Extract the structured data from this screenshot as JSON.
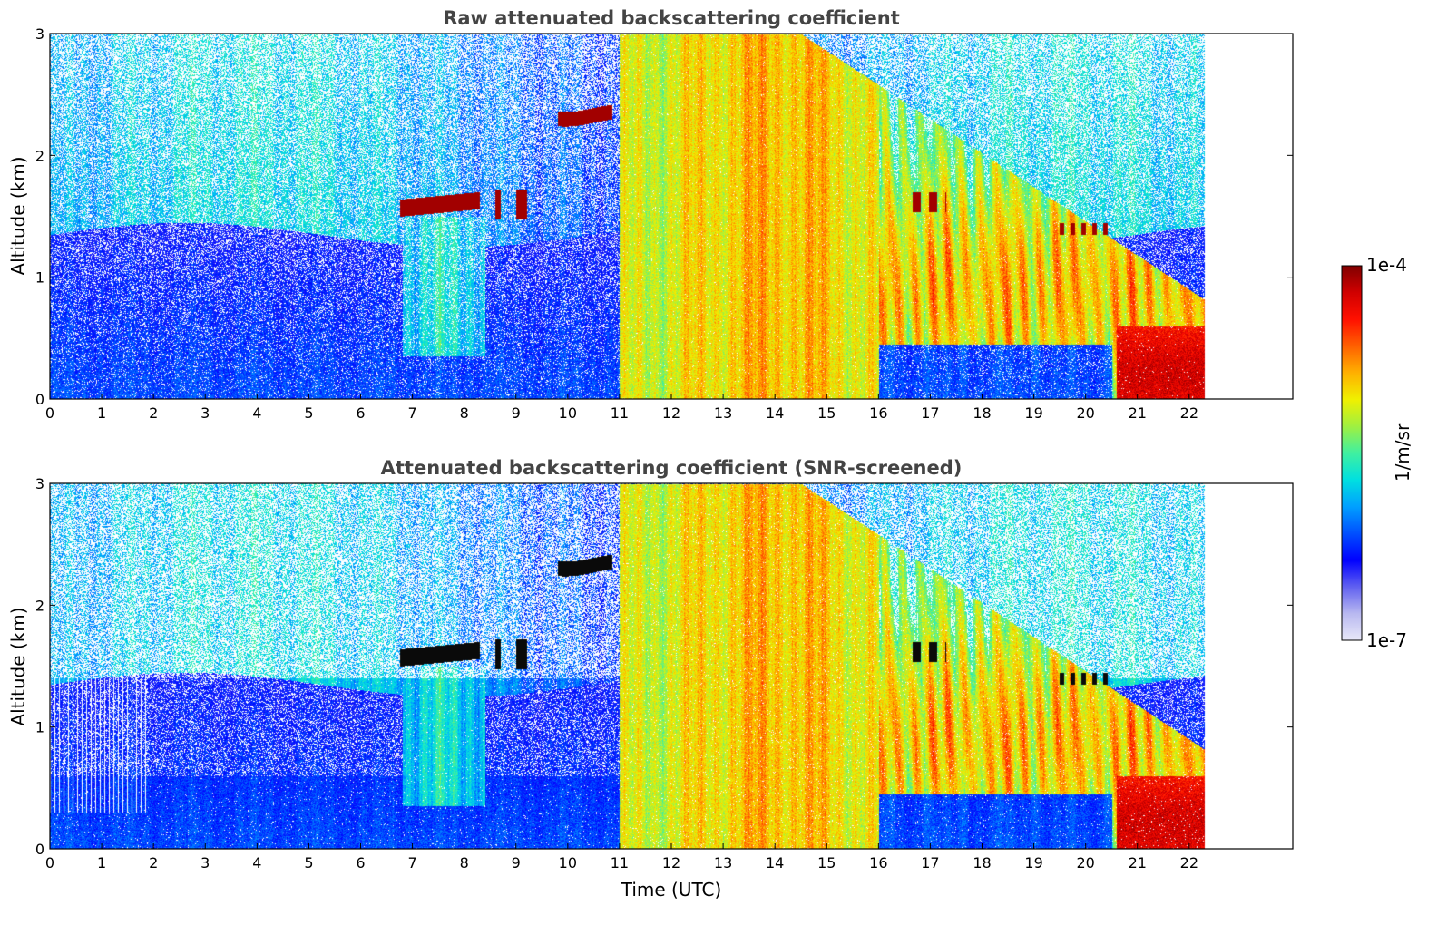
{
  "chart_data": [
    {
      "type": "heatmap",
      "title": "Raw attenuated backscattering coefficient",
      "xlabel": "",
      "ylabel": "Altitude (km)",
      "xlim": [
        0,
        24
      ],
      "ylim": [
        0,
        3
      ],
      "x_ticks": [
        "0",
        "1",
        "2",
        "3",
        "4",
        "5",
        "6",
        "7",
        "8",
        "9",
        "10",
        "11",
        "12",
        "13",
        "14",
        "15",
        "16",
        "17",
        "18",
        "19",
        "20",
        "21",
        "22"
      ],
      "y_ticks": [
        "0",
        "1",
        "2",
        "3"
      ],
      "data_time_end": 22.3,
      "screened": false
    },
    {
      "type": "heatmap",
      "title": "Attenuated backscattering coefficient (SNR-screened)",
      "xlabel": "Time (UTC)",
      "ylabel": "Altitude (km)",
      "xlim": [
        0,
        24
      ],
      "ylim": [
        0,
        3
      ],
      "x_ticks": [
        "0",
        "1",
        "2",
        "3",
        "4",
        "5",
        "6",
        "7",
        "8",
        "9",
        "10",
        "11",
        "12",
        "13",
        "14",
        "15",
        "16",
        "17",
        "18",
        "19",
        "20",
        "21",
        "22"
      ],
      "y_ticks": [
        "0",
        "1",
        "2",
        "3"
      ],
      "data_time_end": 22.3,
      "screened": true
    }
  ],
  "colorbar": {
    "label": "1/m/sr",
    "max_label": "1e-4",
    "min_label": "1e-7",
    "scale": "log",
    "colormap": [
      "#e8e8f8",
      "#b8b8f0",
      "#6060f0",
      "#0000ff",
      "#0050ff",
      "#00a0ff",
      "#00e0e0",
      "#40f0a0",
      "#a0f040",
      "#f0f000",
      "#ffb000",
      "#ff6000",
      "#ff1000",
      "#d00000",
      "#800000"
    ]
  }
}
